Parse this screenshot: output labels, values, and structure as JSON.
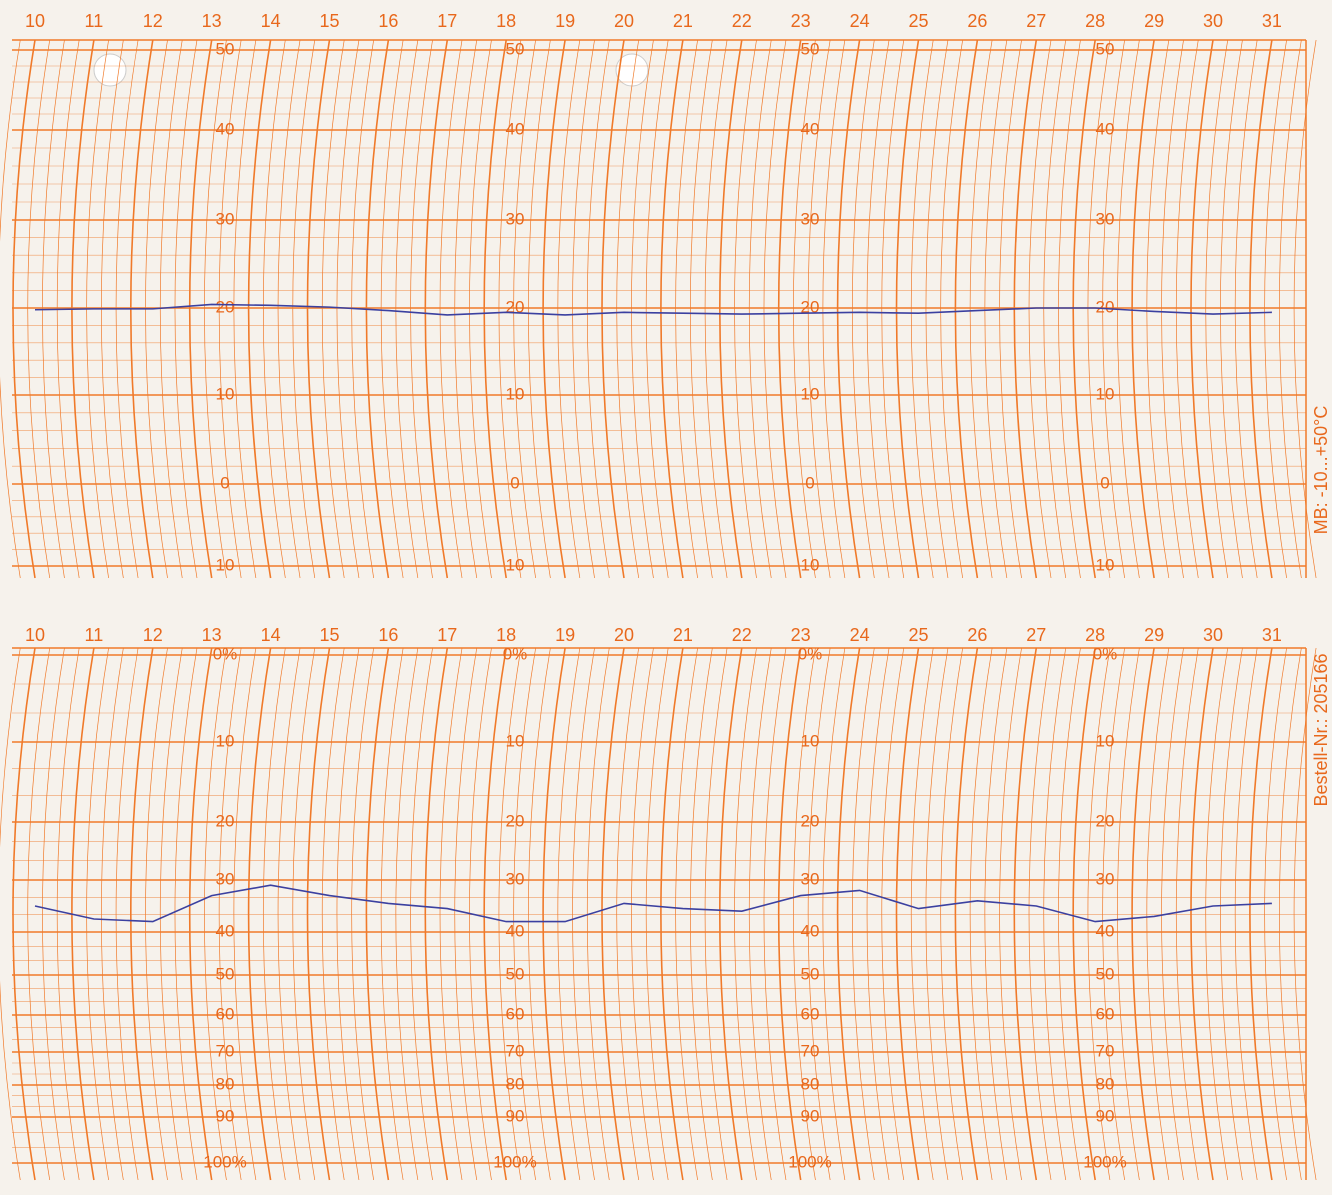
{
  "chart_data": [
    {
      "type": "line",
      "unit_label": "MB: -10...+50°C",
      "categories": [
        "10",
        "11",
        "12",
        "13",
        "14",
        "15",
        "16",
        "17",
        "18",
        "19",
        "20",
        "21",
        "22",
        "23",
        "24",
        "25",
        "26",
        "27",
        "28",
        "29",
        "30",
        "31"
      ],
      "values": [
        19.8,
        19.9,
        19.9,
        20.4,
        20.3,
        20.1,
        19.7,
        19.2,
        19.5,
        19.2,
        19.5,
        19.4,
        19.3,
        19.4,
        19.5,
        19.4,
        19.7,
        20.0,
        20.0,
        19.6,
        19.3,
        19.5
      ],
      "color": "#3b40a0",
      "ylim": [
        -10,
        50
      ],
      "yticks": [
        {
          "value": -10,
          "label": "10"
        },
        0,
        10,
        20,
        30,
        40,
        50
      ],
      "grid": true
    },
    {
      "type": "line",
      "unit_label": "Bestell-Nr.: 205166",
      "categories": [
        "10",
        "11",
        "12",
        "13",
        "14",
        "15",
        "16",
        "17",
        "18",
        "19",
        "20",
        "21",
        "22",
        "23",
        "24",
        "25",
        "26",
        "27",
        "28",
        "29",
        "30",
        "31"
      ],
      "values": [
        35,
        37.5,
        38,
        33,
        31,
        33,
        34.5,
        35.5,
        38,
        38,
        34.5,
        35.5,
        36,
        33,
        32,
        35.5,
        34,
        35,
        38,
        37,
        35,
        34.5
      ],
      "color": "#3b40a0",
      "ylim": [
        0,
        100
      ],
      "y_inverted": true,
      "yticks": [
        {
          "value": 0,
          "label": "0%"
        },
        10,
        20,
        30,
        40,
        50,
        60,
        70,
        80,
        90,
        {
          "value": 100,
          "label": "100%"
        }
      ],
      "grid": true
    }
  ]
}
